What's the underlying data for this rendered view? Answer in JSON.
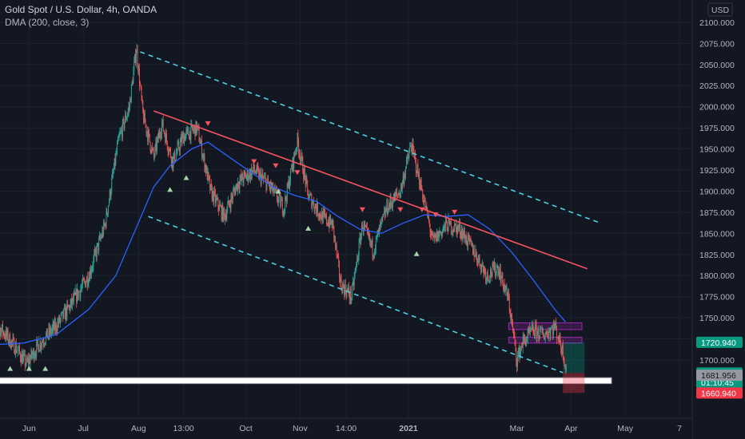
{
  "legend": {
    "title": "Gold Spot / U.S. Dollar, 4h, OANDA",
    "indicator": "DMA (200, close, 3)"
  },
  "currency": "USD",
  "chart_data": {
    "type": "candlestick",
    "title": "Gold Spot / U.S. Dollar, 4h, OANDA",
    "y_ticks": [
      1700,
      1725,
      1750,
      1775,
      1800,
      1825,
      1850,
      1875,
      1900,
      1925,
      1950,
      1975,
      2000,
      2025,
      2050,
      2075,
      2100
    ],
    "y_tick_labels": [
      "1700.000",
      "1725.000",
      "1750.000",
      "1775.000",
      "1800.000",
      "1825.000",
      "1850.000",
      "1875.000",
      "1900.000",
      "1925.000",
      "1950.000",
      "1975.000",
      "2000.000",
      "2025.000",
      "2050.000",
      "2075.000",
      "2100.000"
    ],
    "x_ticks": [
      {
        "label": "Jun",
        "t": 0.7
      },
      {
        "label": "Jul",
        "t": 1.7
      },
      {
        "label": "Aug",
        "t": 2.72
      },
      {
        "label": "13:00",
        "t": 3.55
      },
      {
        "label": "Oct",
        "t": 4.7
      },
      {
        "label": "Nov",
        "t": 5.7
      },
      {
        "label": "14:00",
        "t": 6.55
      },
      {
        "label": "2021",
        "t": 7.7
      },
      {
        "label": "Mar",
        "t": 9.7
      },
      {
        "label": "Apr",
        "t": 10.7
      },
      {
        "label": "May",
        "t": 11.7
      },
      {
        "label": "7",
        "t": 12.7
      }
    ],
    "price_path": [
      {
        "t": 0.0,
        "p": 1740
      },
      {
        "t": 0.2,
        "p": 1735
      },
      {
        "t": 0.45,
        "p": 1715
      },
      {
        "t": 0.65,
        "p": 1695
      },
      {
        "t": 0.9,
        "p": 1720
      },
      {
        "t": 1.2,
        "p": 1740
      },
      {
        "t": 1.5,
        "p": 1768
      },
      {
        "t": 1.8,
        "p": 1800
      },
      {
        "t": 2.1,
        "p": 1860
      },
      {
        "t": 2.35,
        "p": 1960
      },
      {
        "t": 2.55,
        "p": 2000
      },
      {
        "t": 2.68,
        "p": 2070
      },
      {
        "t": 2.8,
        "p": 1990
      },
      {
        "t": 3.0,
        "p": 1940
      },
      {
        "t": 3.15,
        "p": 1980
      },
      {
        "t": 3.35,
        "p": 1935
      },
      {
        "t": 3.55,
        "p": 1965
      },
      {
        "t": 3.8,
        "p": 1975
      },
      {
        "t": 4.05,
        "p": 1900
      },
      {
        "t": 4.3,
        "p": 1870
      },
      {
        "t": 4.55,
        "p": 1910
      },
      {
        "t": 4.85,
        "p": 1925
      },
      {
        "t": 5.15,
        "p": 1905
      },
      {
        "t": 5.4,
        "p": 1880
      },
      {
        "t": 5.65,
        "p": 1960
      },
      {
        "t": 5.85,
        "p": 1895
      },
      {
        "t": 6.1,
        "p": 1870
      },
      {
        "t": 6.3,
        "p": 1860
      },
      {
        "t": 6.45,
        "p": 1790
      },
      {
        "t": 6.65,
        "p": 1775
      },
      {
        "t": 6.85,
        "p": 1860
      },
      {
        "t": 7.05,
        "p": 1830
      },
      {
        "t": 7.3,
        "p": 1880
      },
      {
        "t": 7.55,
        "p": 1900
      },
      {
        "t": 7.75,
        "p": 1955
      },
      {
        "t": 7.95,
        "p": 1900
      },
      {
        "t": 8.15,
        "p": 1840
      },
      {
        "t": 8.4,
        "p": 1860
      },
      {
        "t": 8.65,
        "p": 1855
      },
      {
        "t": 8.9,
        "p": 1830
      },
      {
        "t": 9.15,
        "p": 1800
      },
      {
        "t": 9.35,
        "p": 1810
      },
      {
        "t": 9.55,
        "p": 1770
      },
      {
        "t": 9.7,
        "p": 1700
      },
      {
        "t": 9.8,
        "p": 1720
      },
      {
        "t": 10.0,
        "p": 1735
      },
      {
        "t": 10.2,
        "p": 1730
      },
      {
        "t": 10.4,
        "p": 1740
      },
      {
        "t": 10.55,
        "p": 1710
      },
      {
        "t": 10.62,
        "p": 1685
      }
    ],
    "dma_path": [
      {
        "t": 0.0,
        "p": 1718
      },
      {
        "t": 0.6,
        "p": 1720
      },
      {
        "t": 1.2,
        "p": 1730
      },
      {
        "t": 1.8,
        "p": 1760
      },
      {
        "t": 2.3,
        "p": 1800
      },
      {
        "t": 2.7,
        "p": 1860
      },
      {
        "t": 3.0,
        "p": 1905
      },
      {
        "t": 3.3,
        "p": 1930
      },
      {
        "t": 3.7,
        "p": 1950
      },
      {
        "t": 4.0,
        "p": 1958
      },
      {
        "t": 4.4,
        "p": 1940
      },
      {
        "t": 4.8,
        "p": 1922
      },
      {
        "t": 5.2,
        "p": 1905
      },
      {
        "t": 5.6,
        "p": 1895
      },
      {
        "t": 6.0,
        "p": 1888
      },
      {
        "t": 6.4,
        "p": 1870
      },
      {
        "t": 6.8,
        "p": 1855
      },
      {
        "t": 7.2,
        "p": 1850
      },
      {
        "t": 7.6,
        "p": 1862
      },
      {
        "t": 8.0,
        "p": 1872
      },
      {
        "t": 8.4,
        "p": 1870
      },
      {
        "t": 8.8,
        "p": 1872
      },
      {
        "t": 9.2,
        "p": 1855
      },
      {
        "t": 9.6,
        "p": 1828
      },
      {
        "t": 10.0,
        "p": 1795
      },
      {
        "t": 10.4,
        "p": 1760
      },
      {
        "t": 10.6,
        "p": 1745
      }
    ],
    "trendlines": [
      {
        "name": "resistance",
        "color": "#f7525f",
        "dash": false,
        "t1": 3.0,
        "p1": 1995,
        "t2": 11.0,
        "p2": 1808
      },
      {
        "name": "channel-top",
        "color": "#22ab94",
        "dash": true,
        "t1": 2.75,
        "p1": 2065,
        "t2": 11.25,
        "p2": 1862
      },
      {
        "name": "channel-bottom",
        "color": "#22ab94",
        "dash": true,
        "t1": 2.9,
        "p1": 1870,
        "t2": 10.55,
        "p2": 1685
      }
    ],
    "signals": [
      {
        "kind": "down",
        "t": 4.0,
        "p": 1980
      },
      {
        "kind": "down",
        "t": 4.85,
        "p": 1935
      },
      {
        "kind": "down",
        "t": 5.25,
        "p": 1930
      },
      {
        "kind": "down",
        "t": 5.65,
        "p": 1922
      },
      {
        "kind": "down",
        "t": 6.85,
        "p": 1878
      },
      {
        "kind": "down",
        "t": 7.55,
        "p": 1878
      },
      {
        "kind": "down",
        "t": 7.95,
        "p": 1878
      },
      {
        "kind": "down",
        "t": 8.2,
        "p": 1872
      },
      {
        "kind": "down",
        "t": 8.55,
        "p": 1875
      },
      {
        "kind": "up",
        "t": 0.35,
        "p": 1690
      },
      {
        "kind": "up",
        "t": 0.7,
        "p": 1690
      },
      {
        "kind": "up",
        "t": 1.0,
        "p": 1690
      },
      {
        "kind": "up",
        "t": 3.3,
        "p": 1902
      },
      {
        "kind": "up",
        "t": 3.6,
        "p": 1916
      },
      {
        "kind": "up",
        "t": 5.3,
        "p": 1900
      },
      {
        "kind": "up",
        "t": 5.85,
        "p": 1856
      },
      {
        "kind": "up",
        "t": 7.85,
        "p": 1826
      }
    ],
    "zones": [
      {
        "color": "#9c27b0",
        "t1": 9.55,
        "p1": 1744,
        "t2": 10.9,
        "p2": 1736
      },
      {
        "color": "#9c27b0",
        "t1": 9.55,
        "p1": 1727,
        "t2": 10.9,
        "p2": 1720
      },
      {
        "color": "#ffffff",
        "t1": 0.0,
        "p1": 1679,
        "t2": 11.45,
        "p2": 1672
      }
    ],
    "position": {
      "t1": 10.55,
      "t2": 10.95,
      "entry": 1684.69,
      "target": 1720.94,
      "stop": 1660.94
    },
    "price_tags": [
      {
        "label": "1720.940",
        "value": 1720.94,
        "bg": "#089981",
        "fg": "#ffffff"
      },
      {
        "label": "1684.690",
        "value": 1684.69,
        "bg": "#089981",
        "fg": "#ffffff",
        "sub": "01:10:45"
      },
      {
        "label": "1681.956",
        "value": 1681.956,
        "bg": "#9598a1",
        "fg": "#131722"
      },
      {
        "label": "1660.940",
        "value": 1660.94,
        "bg": "#f23645",
        "fg": "#ffffff"
      }
    ],
    "colors": {
      "up": "#26a69a",
      "down": "#ef5350",
      "dma": "#2962ff",
      "grid": "#1e222d",
      "bg": "#131722"
    }
  }
}
